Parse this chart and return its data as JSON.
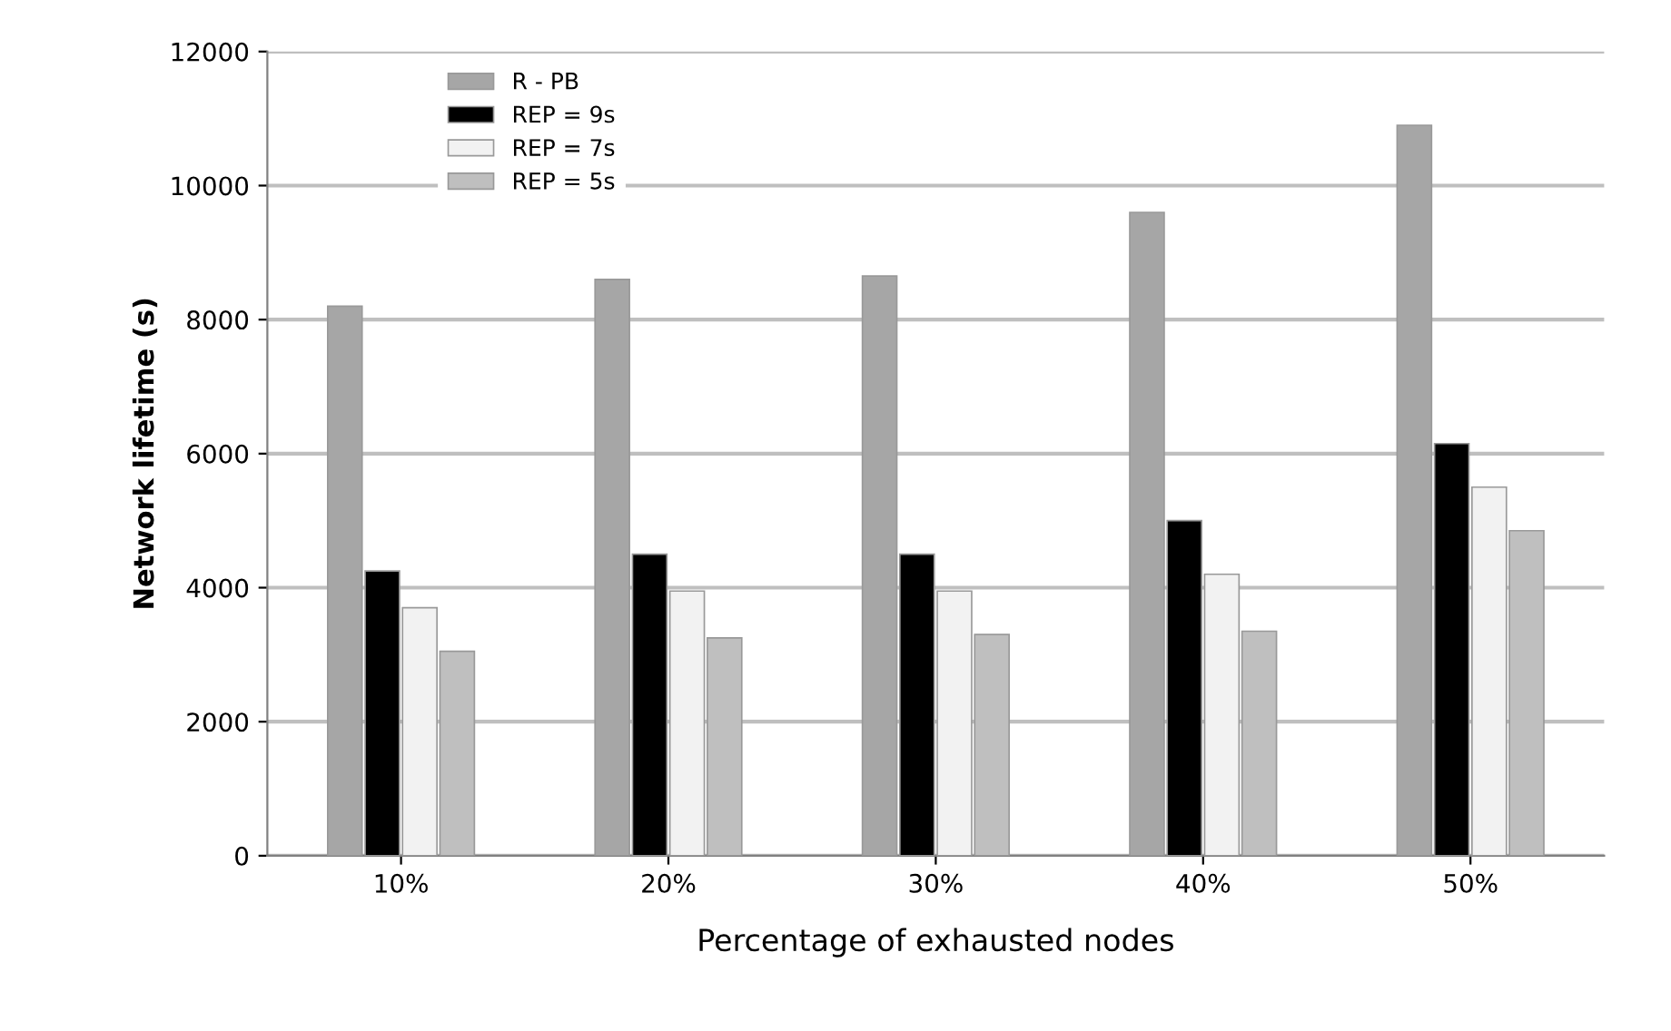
{
  "chart_data": {
    "type": "bar",
    "xlabel": "Percentage of exhausted nodes",
    "ylabel": "Network lifetime (s)",
    "categories": [
      "10%",
      "20%",
      "30%",
      "40%",
      "50%"
    ],
    "series": [
      {
        "name": "R - PB",
        "color": "#a6a6a6",
        "values": [
          8200,
          8600,
          8650,
          9600,
          10900
        ]
      },
      {
        "name": "REP = 9s",
        "color": "#000000",
        "values": [
          4250,
          4500,
          4500,
          5000,
          6150
        ]
      },
      {
        "name": "REP = 7s",
        "color": "#f2f2f2",
        "values": [
          3700,
          3950,
          3950,
          4200,
          5500
        ]
      },
      {
        "name": "REP = 5s",
        "color": "#bfbfbf",
        "values": [
          3050,
          3250,
          3300,
          3350,
          4850
        ]
      }
    ],
    "ylim": [
      0,
      12000
    ],
    "yticks": [
      0,
      2000,
      4000,
      6000,
      8000,
      10000,
      12000
    ],
    "grid": "y",
    "legend": "top left"
  }
}
